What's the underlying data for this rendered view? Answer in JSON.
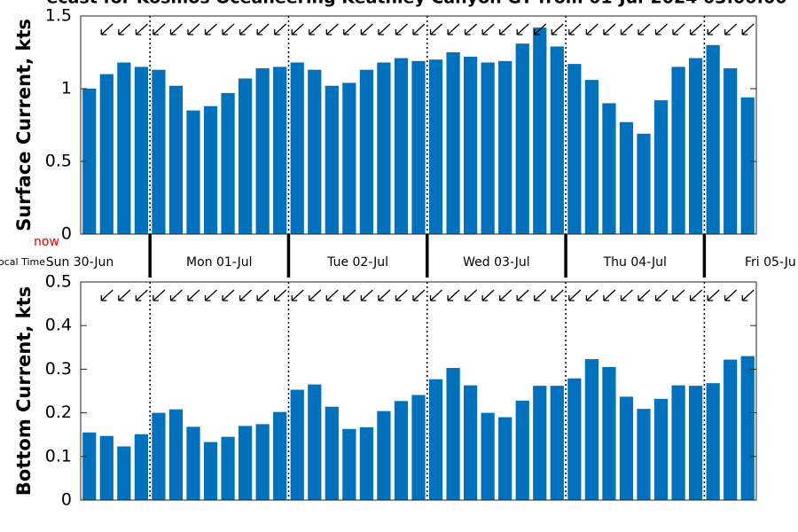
{
  "title": "ecast for Kosmos Oceaneering Keathley Canyon GT from 01-Jul-2024 03:00:00",
  "time_axis": {
    "label": "ocal Time",
    "now": "now",
    "days": [
      "Sun 30-Jun",
      "Mon 01-Jul",
      "Tue 02-Jul",
      "Wed 03-Jul",
      "Thu 04-Jul",
      "Fri 05-Ju"
    ]
  },
  "chart_data": [
    {
      "type": "bar",
      "y_label": "Surface Current, kts",
      "color": "#0072bd",
      "values": [
        1.0,
        1.1,
        1.18,
        1.15,
        1.13,
        1.02,
        0.85,
        0.88,
        0.97,
        1.07,
        1.14,
        1.15,
        1.18,
        1.13,
        1.02,
        1.04,
        1.13,
        1.18,
        1.21,
        1.19,
        1.2,
        1.25,
        1.22,
        1.18,
        1.19,
        1.31,
        1.42,
        1.29,
        1.17,
        1.06,
        0.9,
        0.77,
        0.69,
        0.92,
        1.15,
        1.21,
        1.3,
        1.14,
        0.94
      ],
      "ylim": [
        0,
        1.5
      ],
      "yticks": [
        0,
        0.5,
        1,
        1.5
      ]
    },
    {
      "type": "bar",
      "y_label": "Bottom Current, kts",
      "color": "#0072bd",
      "values": [
        0.155,
        0.147,
        0.123,
        0.151,
        0.2,
        0.208,
        0.168,
        0.133,
        0.145,
        0.17,
        0.174,
        0.202,
        0.253,
        0.265,
        0.214,
        0.163,
        0.167,
        0.204,
        0.227,
        0.241,
        0.277,
        0.303,
        0.263,
        0.2,
        0.19,
        0.228,
        0.262,
        0.262,
        0.279,
        0.323,
        0.305,
        0.237,
        0.209,
        0.232,
        0.263,
        0.262,
        0.268,
        0.322,
        0.33
      ],
      "ylim": [
        0,
        0.5
      ],
      "yticks": [
        0,
        0.1,
        0.2,
        0.3,
        0.4,
        0.5
      ]
    }
  ]
}
